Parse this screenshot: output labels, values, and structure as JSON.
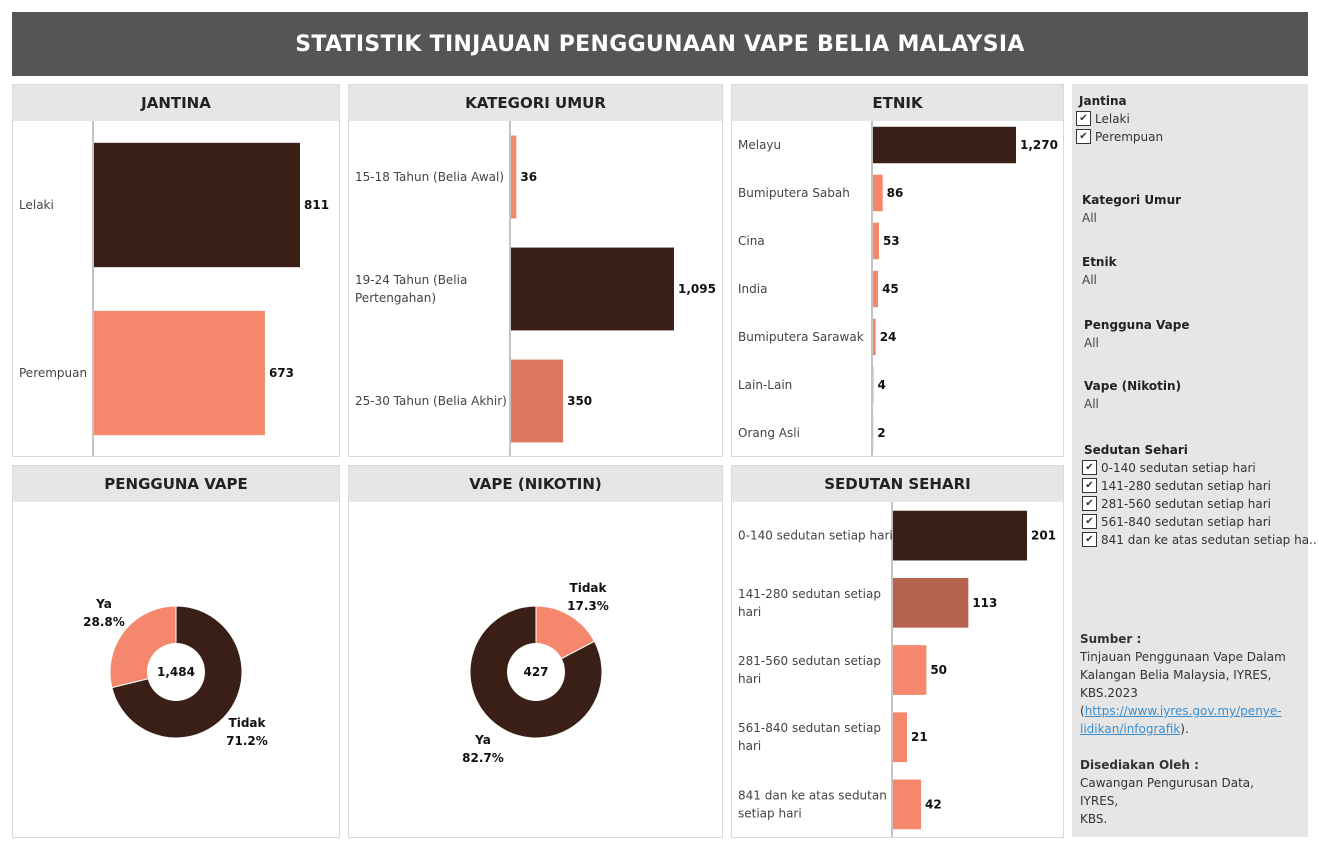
{
  "title": "STATISTIK TINJAUAN PENGGUNAAN VAPE BELIA MALAYSIA",
  "colors": {
    "dark": "#3a1f17",
    "salmon": "#f4876c",
    "mid": "#dd7862",
    "brown": "#b5634f",
    "header_bg": "#555555"
  },
  "panels": {
    "jantina": "JANTINA",
    "umur": "KATEGORI UMUR",
    "etnik": "ETNIK",
    "pengguna": "PENGGUNA VAPE",
    "nikotin": "VAPE (NIKOTIN)",
    "sedutan": "SEDUTAN SEHARI"
  },
  "chart_data": [
    {
      "id": "jantina",
      "type": "bar",
      "orientation": "horizontal",
      "categories": [
        "Lelaki",
        "Perempuan"
      ],
      "values": [
        811,
        673
      ],
      "value_labels": [
        "811",
        "673"
      ]
    },
    {
      "id": "umur",
      "type": "bar",
      "orientation": "horizontal",
      "categories": [
        [
          "15-18 Tahun (Belia Awal)"
        ],
        [
          "19-24 Tahun (Belia",
          "Pertengahan)"
        ],
        [
          "25-30 Tahun (Belia Akhir)"
        ]
      ],
      "values": [
        36,
        1095,
        350
      ],
      "value_labels": [
        "36",
        "1,095",
        "350"
      ]
    },
    {
      "id": "etnik",
      "type": "bar",
      "orientation": "horizontal",
      "categories": [
        "Melayu",
        "Bumiputera Sabah",
        "Cina",
        "India",
        "Bumiputera Sarawak",
        "Lain-Lain",
        "Orang Asli"
      ],
      "values": [
        1270,
        86,
        53,
        45,
        24,
        4,
        2
      ],
      "value_labels": [
        "1,270",
        "86",
        "53",
        "45",
        "24",
        "4",
        "2"
      ]
    },
    {
      "id": "pengguna",
      "type": "pie",
      "total_label": "1,484",
      "slices": [
        {
          "label": "Ya",
          "pct_label": "28.8%",
          "value": 28.8
        },
        {
          "label": "Tidak",
          "pct_label": "71.2%",
          "value": 71.2
        }
      ]
    },
    {
      "id": "nikotin",
      "type": "pie",
      "total_label": "427",
      "slices": [
        {
          "label": "Tidak",
          "pct_label": "17.3%",
          "value": 17.3
        },
        {
          "label": "Ya",
          "pct_label": "82.7%",
          "value": 82.7
        }
      ]
    },
    {
      "id": "sedutan",
      "type": "bar",
      "orientation": "horizontal",
      "categories": [
        [
          "0-140 sedutan setiap hari"
        ],
        [
          "141-280 sedutan setiap",
          "hari"
        ],
        [
          "281-560 sedutan setiap",
          "hari"
        ],
        [
          "561-840 sedutan setiap",
          "hari"
        ],
        [
          "841 dan ke atas sedutan",
          "setiap hari"
        ]
      ],
      "values": [
        201,
        113,
        50,
        21,
        42
      ],
      "value_labels": [
        "201",
        "113",
        "50",
        "21",
        "42"
      ]
    }
  ],
  "filters": {
    "jantina": {
      "title": "Jantina",
      "options": [
        "Lelaki",
        "Perempuan"
      ]
    },
    "umur": {
      "title": "Kategori Umur",
      "value": "All"
    },
    "etnik": {
      "title": "Etnik",
      "value": "All"
    },
    "pengguna": {
      "title": "Pengguna Vape",
      "value": "All"
    },
    "nikotin": {
      "title": "Vape (Nikotin)",
      "value": "All"
    },
    "sedutan": {
      "title": "Sedutan Sehari",
      "options": [
        "0-140 sedutan setiap hari",
        "141-280 sedutan setiap hari",
        "281-560 sedutan setiap hari",
        "561-840 sedutan setiap hari",
        "841 dan ke atas sedutan setiap ha.."
      ]
    },
    "check_glyph": "✔"
  },
  "source": {
    "title": "Sumber :",
    "lines": [
      "Tinjauan Penggunaan Vape Dalam",
      "Kalangan Belia Malaysia, IYRES,",
      "KBS.2023"
    ],
    "link_open": "(",
    "link_line1": "https://www.iyres.gov.my/penye-",
    "link_line2": "lidikan/infografik",
    "link_close": ")."
  },
  "prepared": {
    "title": "Disediakan Oleh :",
    "lines": [
      "Cawangan Pengurusan Data, IYRES,",
      "KBS."
    ]
  }
}
